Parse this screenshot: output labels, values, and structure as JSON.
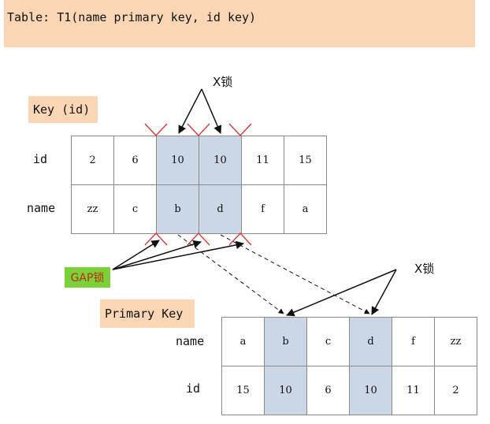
{
  "title": "Table: T1(name primary key, id key)",
  "key_index": {
    "label": "Key (id)",
    "rows": [
      {
        "header": "id",
        "cells": [
          "2",
          "6",
          "10",
          "10",
          "11",
          "15"
        ]
      },
      {
        "header": "name",
        "cells": [
          "zz",
          "c",
          "b",
          "d",
          "f",
          "a"
        ]
      }
    ],
    "highlighted_columns": [
      2,
      3
    ]
  },
  "primary_key": {
    "label": "Primary Key",
    "rows": [
      {
        "header": "name",
        "cells": [
          "a",
          "b",
          "c",
          "d",
          "f",
          "zz"
        ]
      },
      {
        "header": "id",
        "cells": [
          "15",
          "10",
          "6",
          "10",
          "11",
          "2"
        ]
      }
    ],
    "highlighted_columns": [
      1,
      3
    ]
  },
  "annotations": {
    "x_lock_top": "X锁",
    "x_lock_right": "X锁",
    "gap_lock": "GAP锁"
  },
  "colors": {
    "banner": "#fbd6b4",
    "highlight": "#cbd7e6",
    "gap_label_bg": "#7ad13a",
    "gap_label_text": "#c22b10",
    "gap_marker": "#e03030"
  }
}
